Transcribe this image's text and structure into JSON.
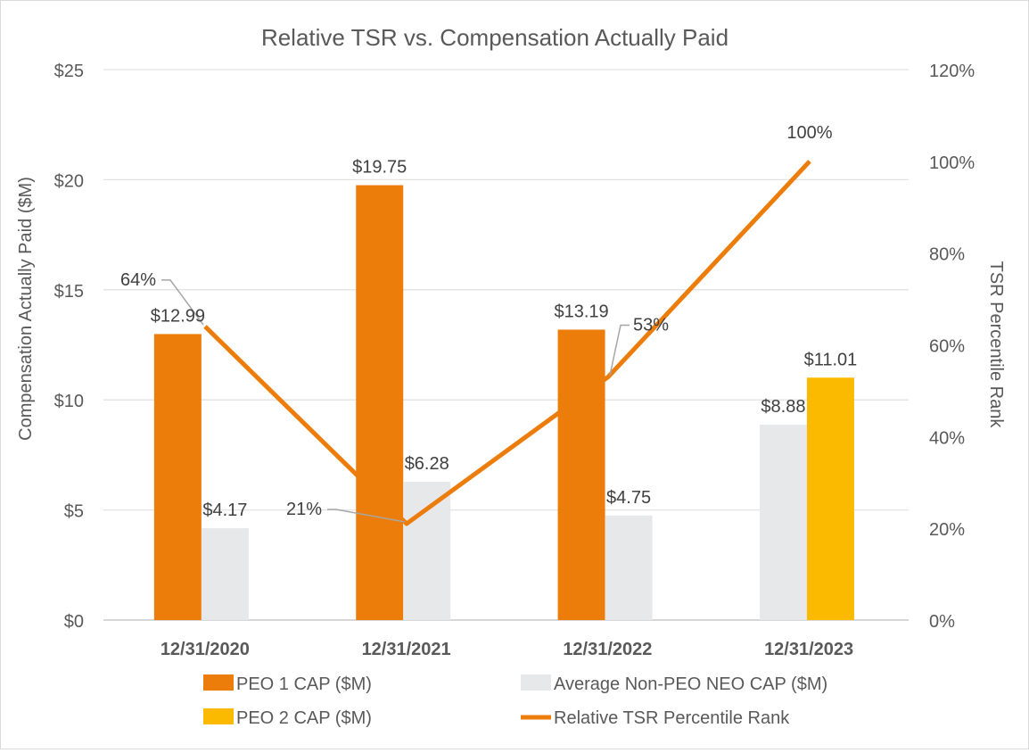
{
  "chart_data": {
    "type": "bar",
    "title": "Relative TSR vs. Compensation Actually Paid",
    "ylabel_left": "Compensation Actually Paid ($M)",
    "ylabel_right": "TSR Percentile Rank",
    "categories": [
      "12/31/2020",
      "12/31/2021",
      "12/31/2022",
      "12/31/2023"
    ],
    "ylim_left": [
      0,
      25
    ],
    "yticks_left": [
      "$0",
      "$5",
      "$10",
      "$15",
      "$20",
      "$25"
    ],
    "ylim_right": [
      0,
      120
    ],
    "yticks_right": [
      "0%",
      "20%",
      "40%",
      "60%",
      "80%",
      "100%",
      "120%"
    ],
    "grid": true,
    "legend_position": "bottom",
    "series": [
      {
        "name": "PEO 1 CAP ($M)",
        "kind": "bar",
        "color": "#ED7D0B",
        "values": [
          12.99,
          19.75,
          13.19,
          null
        ],
        "labels": [
          "$12.99",
          "$19.75",
          "$13.19",
          ""
        ]
      },
      {
        "name": "Average Non-PEO NEO CAP ($M)",
        "kind": "bar",
        "color": "#E7E8EA",
        "values": [
          4.17,
          6.28,
          4.75,
          8.88
        ],
        "labels": [
          "$4.17",
          "$6.28",
          "$4.75",
          "$8.88"
        ]
      },
      {
        "name": "PEO 2 CAP ($M)",
        "kind": "bar",
        "color": "#FBB900",
        "values": [
          null,
          null,
          null,
          11.01
        ],
        "labels": [
          "",
          "",
          "",
          "$11.01"
        ]
      },
      {
        "name": "Relative TSR Percentile Rank",
        "kind": "line",
        "axis": "right",
        "color": "#ED7D0B",
        "values": [
          64,
          21,
          53,
          100
        ],
        "labels": [
          "64%",
          "21%",
          "53%",
          "100%"
        ]
      }
    ]
  }
}
